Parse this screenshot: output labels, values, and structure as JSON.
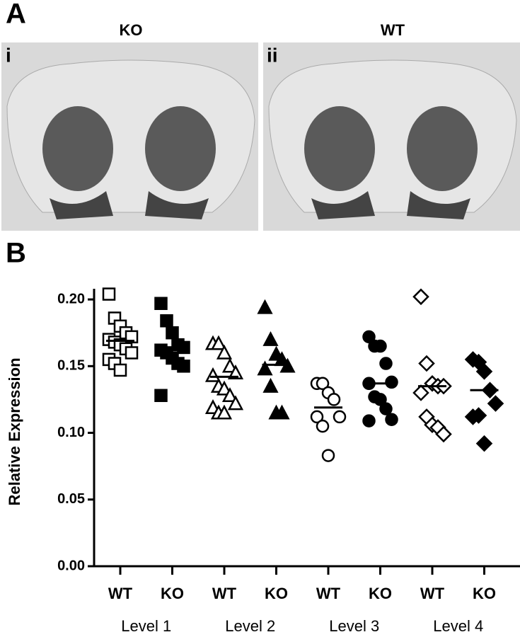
{
  "panel_a": {
    "label": "A",
    "images": [
      {
        "title": "KO",
        "label": "i"
      },
      {
        "title": "WT",
        "label": "ii"
      }
    ]
  },
  "chart_data": {
    "type": "scatter",
    "panel_label": "B",
    "y_label": "Relative Expression",
    "categories": [
      "WT",
      "KO",
      "WT",
      "KO",
      "WT",
      "KO",
      "WT",
      "KO"
    ],
    "levels": [
      "Level 1",
      "Level 2",
      "Level 3",
      "Level 4"
    ],
    "markers": [
      "square-open",
      "square-filled",
      "triangle-open",
      "triangle-filled",
      "circle-open",
      "circle-filled",
      "diamond-open",
      "diamond-filled"
    ],
    "color": "#000000",
    "points": [
      [
        0.204,
        0.186,
        0.18,
        0.175,
        0.172,
        0.17,
        0.168,
        0.166,
        0.163,
        0.16,
        0.155,
        0.152,
        0.147
      ],
      [
        0.197,
        0.184,
        0.175,
        0.166,
        0.164,
        0.162,
        0.16,
        0.156,
        0.152,
        0.15,
        0.128
      ],
      [
        0.167,
        0.167,
        0.16,
        0.15,
        0.145,
        0.143,
        0.135,
        0.133,
        0.128,
        0.122,
        0.119,
        0.115,
        0.115
      ],
      [
        0.194,
        0.17,
        0.159,
        0.155,
        0.15,
        0.148,
        0.135,
        0.115,
        0.115
      ],
      [
        0.137,
        0.137,
        0.13,
        0.125,
        0.112,
        0.112,
        0.105,
        0.083
      ],
      [
        0.172,
        0.165,
        0.165,
        0.152,
        0.138,
        0.137,
        0.127,
        0.125,
        0.118,
        0.11,
        0.109
      ],
      [
        0.202,
        0.152,
        0.137,
        0.135,
        0.135,
        0.13,
        0.112,
        0.106,
        0.104,
        0.099
      ],
      [
        0.155,
        0.153,
        0.146,
        0.132,
        0.122,
        0.112,
        0.113,
        0.092
      ]
    ],
    "means": [
      0.169,
      0.164,
      0.142,
      0.151,
      0.119,
      0.137,
      0.135,
      0.132
    ],
    "ylim": [
      0,
      0.208
    ],
    "yticks": [
      {
        "value": 0,
        "label": "0.00"
      },
      0.05,
      {
        "value": 0.1,
        "label": "0.10"
      },
      0.15,
      {
        "value": 0.2,
        "label": "0.20"
      }
    ]
  }
}
